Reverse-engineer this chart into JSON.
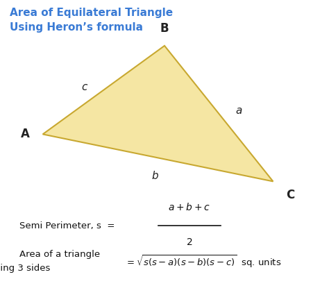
{
  "title_line1": "Area of Equilateral Triangle",
  "title_line2": "Using Heron’s formula",
  "title_color": "#3a7bd5",
  "bg_color": "#ffffff",
  "triangle_fill": "#f5e6a3",
  "triangle_edge": "#c8a830",
  "vertex_A": [
    0.13,
    0.545
  ],
  "vertex_B": [
    0.5,
    0.845
  ],
  "vertex_C": [
    0.83,
    0.385
  ],
  "label_A": "A",
  "label_B": "B",
  "label_C": "C",
  "label_a": "a",
  "label_b": "b",
  "label_c": "c",
  "label_color": "#222222",
  "formula_color": "#111111",
  "overline_color": "#111111"
}
